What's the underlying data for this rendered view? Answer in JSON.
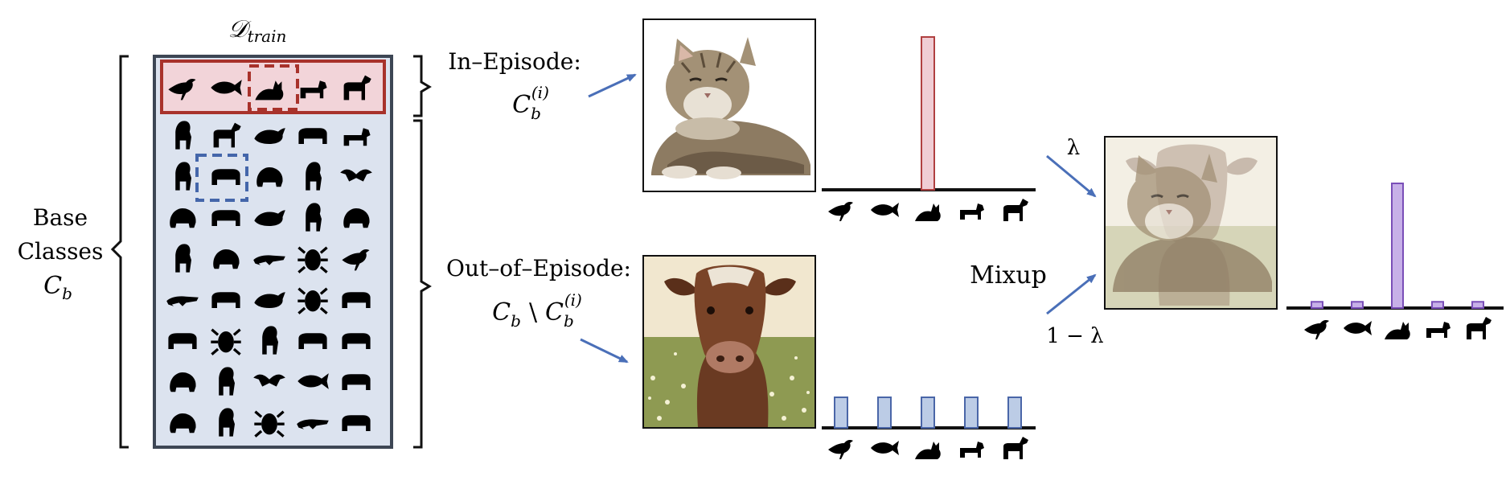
{
  "labels": {
    "dataset_title": "𝒟",
    "dataset_sub": "train",
    "base_line1": "Base",
    "base_line2": "Classes",
    "base_sym": "C",
    "base_sym_sub": "b",
    "in_episode": "In–Episode:",
    "in_sym": "C",
    "in_sym_sub": "b",
    "in_sym_sup": "(i)",
    "out_episode": "Out–of–Episode:",
    "out_sym_a": "C",
    "out_sym_a_sub": "b",
    "out_sym_setminus": "\\",
    "out_sym_b": "C",
    "out_sym_b_sub": "b",
    "out_sym_b_sup": "(i)",
    "lambda": "λ",
    "one_minus_lambda": "1 − λ",
    "mixup": "Mixup"
  },
  "colors": {
    "episode_fill": "#f2d4d9",
    "episode_border": "#a8322b",
    "grid_fill": "#dce3ef",
    "grid_border": "#3d4654",
    "cow_box": "#4466aa",
    "arrow": "#4a6fb8",
    "red_bar": "#f0cdd4",
    "red_bar_border": "#b04040",
    "blue_bar": "#bccce6",
    "blue_bar_border": "#4a66a8",
    "purple_bar": "#c7b0e8",
    "purple_bar_border": "#7a4fb8"
  },
  "episode_classes": [
    "bird-icon",
    "fish-icon",
    "cat-icon",
    "dog-icon",
    "horse-icon"
  ],
  "grid_icons": [
    [
      "squirrel-icon",
      "goat-icon",
      "dolphin-icon",
      "camel-icon",
      "fox-icon"
    ],
    [
      "owl-icon",
      "cow-icon",
      "chameleon-icon",
      "penguin-icon",
      "bat-icon"
    ],
    [
      "mouse-icon",
      "sheep-icon",
      "narwhal-icon",
      "rabbit-icon",
      "turtle-icon"
    ],
    [
      "koala-icon",
      "frog-icon",
      "lizard-icon",
      "octopus-icon",
      "rooster-icon"
    ],
    [
      "snake-icon",
      "bear-icon",
      "whale-icon",
      "beetle-icon",
      "sloth-icon"
    ],
    [
      "rhino-icon",
      "scorpion-icon",
      "kangaroo-icon",
      "boar-icon",
      "hippo-icon"
    ],
    [
      "snail-icon",
      "giraffe-icon",
      "eagle-icon",
      "shark-icon",
      "elephant-icon"
    ],
    [
      "panda-icon",
      "monkey-icon",
      "crab-icon",
      "crocodile-icon",
      "skunk-icon"
    ]
  ],
  "in_episode_label_distribution": [
    0,
    0,
    1,
    0,
    0
  ],
  "out_episode_label_distribution": [
    0.2,
    0.2,
    0.2,
    0.2,
    0.2
  ],
  "mixup_label_distribution": [
    0.05,
    0.05,
    1,
    0.05,
    0.05
  ]
}
